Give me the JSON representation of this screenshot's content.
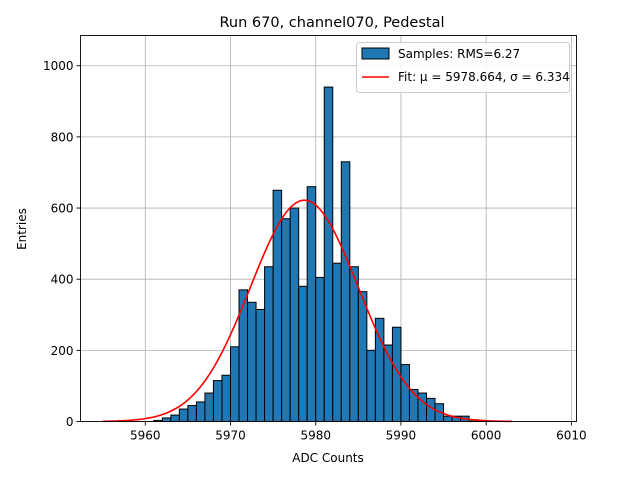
{
  "chart_data": {
    "type": "bar",
    "title": "Run 670, channel070, Pedestal",
    "xlabel": "ADC Counts",
    "ylabel": "Entries",
    "xlim": [
      5952.4,
      6010.6
    ],
    "ylim": [
      0,
      1085
    ],
    "xticks": [
      5960,
      5970,
      5980,
      5990,
      6000,
      6010
    ],
    "yticks": [
      0,
      200,
      400,
      600,
      800,
      1000
    ],
    "grid": true,
    "legend_position": "top-right",
    "bin_start": 5961,
    "bin_width": 1,
    "bar_fill": "#1f77b4",
    "bar_edge": "#000000",
    "fit_color": "#ff0000",
    "histogram": {
      "name": "Samples: RMS=6.27",
      "values": [
        3,
        10,
        18,
        35,
        45,
        55,
        80,
        115,
        130,
        210,
        370,
        335,
        315,
        435,
        650,
        570,
        600,
        380,
        660,
        405,
        940,
        445,
        730,
        435,
        365,
        200,
        290,
        215,
        265,
        160,
        90,
        80,
        65,
        50,
        15,
        15,
        15,
        5,
        3
      ]
    },
    "fit": {
      "name": "Fit: μ = 5978.664, σ = 6.334",
      "mu": 5978.664,
      "sigma": 6.334,
      "amplitude": 622,
      "x_range": [
        5955,
        6003
      ]
    }
  }
}
